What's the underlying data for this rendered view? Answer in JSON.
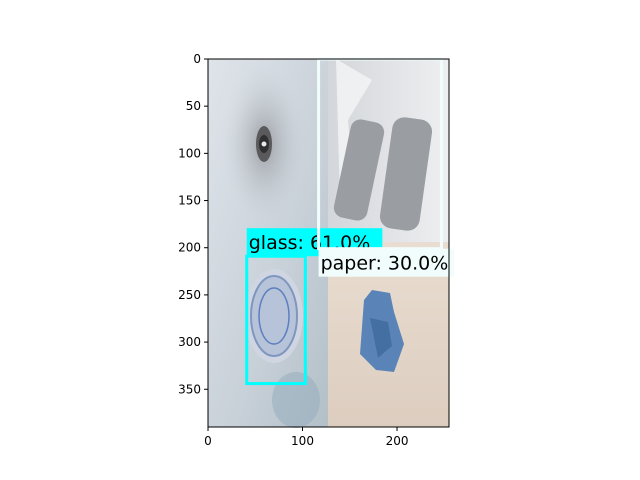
{
  "chart_data": {
    "type": "image-with-detections",
    "xlim": [
      0,
      255
    ],
    "ylim": [
      390,
      0
    ],
    "x_ticks": [
      0,
      100,
      200
    ],
    "y_ticks": [
      0,
      50,
      100,
      150,
      200,
      250,
      300,
      350
    ],
    "image_width": 255,
    "image_height": 390,
    "detections": [
      {
        "name": "glass",
        "label": "glass: 61.0%",
        "score_percent": 61.0,
        "x_min": 41,
        "y_min": 209,
        "x_max": 103,
        "y_max": 344,
        "color": "#00ffff",
        "label_bg": "#00ffff"
      },
      {
        "name": "paper",
        "label": "paper: 30.0%",
        "score_percent": 30.0,
        "x_min": 117,
        "y_min": 0,
        "x_max": 247,
        "y_max": 201,
        "color": "#f0fdfc",
        "label_bg": "#f0fdfc"
      }
    ]
  }
}
